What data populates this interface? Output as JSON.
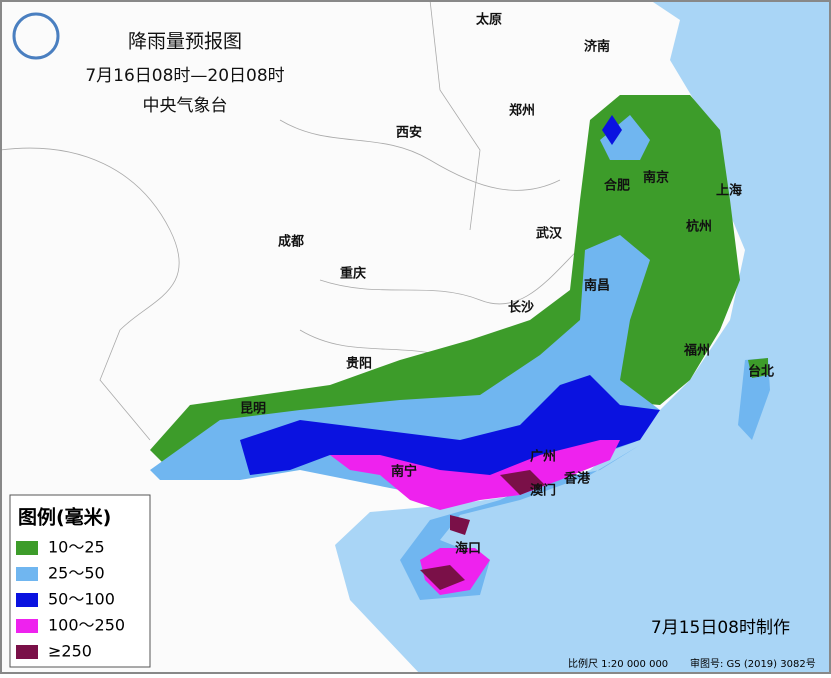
{
  "header": {
    "title": "降雨量预报图",
    "period": "7月16日08时—20日08时",
    "issuer": "中央气象台"
  },
  "cities": [
    "太原",
    "济南",
    "郑州",
    "西安",
    "合肥",
    "南京",
    "上海",
    "武汉",
    "杭州",
    "成都",
    "重庆",
    "长沙",
    "南昌",
    "福州",
    "台北",
    "贵阳",
    "昆明",
    "广州",
    "南宁",
    "香港",
    "澳门",
    "海口"
  ],
  "legend": {
    "title": "图例(毫米)",
    "items": [
      {
        "label": "10～25",
        "color": "#3d9c2a"
      },
      {
        "label": "25～50",
        "color": "#70b6f0"
      },
      {
        "label": "50～100",
        "color": "#0a12e0"
      },
      {
        "label": "100～250",
        "color": "#ee22ee"
      },
      {
        "label": "≥250",
        "color": "#7a1048"
      }
    ]
  },
  "footer": {
    "made": "7月15日08时制作",
    "scale": "比例尺 1:20 000 000",
    "approval": "审图号: GS (2019) 3082号"
  }
}
